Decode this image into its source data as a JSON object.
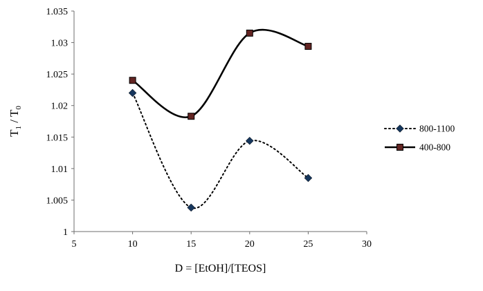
{
  "chart_data": {
    "type": "line",
    "x": [
      10,
      15,
      20,
      25
    ],
    "series": [
      {
        "name": "800-1100",
        "values": [
          1.022,
          1.0038,
          1.0144,
          1.0085
        ],
        "line_style": "dotted",
        "marker": "diamond",
        "marker_color": "#16365C",
        "line_color": "#000000"
      },
      {
        "name": "400-800",
        "values": [
          1.024,
          1.0183,
          1.0315,
          1.0294
        ],
        "line_style": "solid",
        "marker": "square",
        "marker_color": "#632523",
        "line_color": "#000000"
      }
    ],
    "title": "",
    "xlabel": "D = [EtOH]/[TEOS]",
    "ylabel": "T1 / T0",
    "ylabel_parts": [
      {
        "text": "T",
        "sub": false
      },
      {
        "text": "1",
        "sub": true
      },
      {
        "text": " / T",
        "sub": false
      },
      {
        "text": "0",
        "sub": true
      }
    ],
    "xlim": [
      5,
      30
    ],
    "ylim": [
      1.0,
      1.035
    ],
    "xtick_values": [
      5,
      10,
      15,
      20,
      25,
      30
    ],
    "xtick_labels": [
      "5",
      "10",
      "15",
      "20",
      "25",
      "30"
    ],
    "ytick_values": [
      1.0,
      1.005,
      1.01,
      1.015,
      1.02,
      1.025,
      1.03,
      1.035
    ],
    "ytick_labels": [
      "1",
      "1.005",
      "1.01",
      "1.015",
      "1.02",
      "1.025",
      "1.03",
      "1.035"
    ],
    "grid": false,
    "smoothed": true,
    "legend_position": "right",
    "axis_color": "#6e6e6e",
    "background_color": "#ffffff"
  }
}
